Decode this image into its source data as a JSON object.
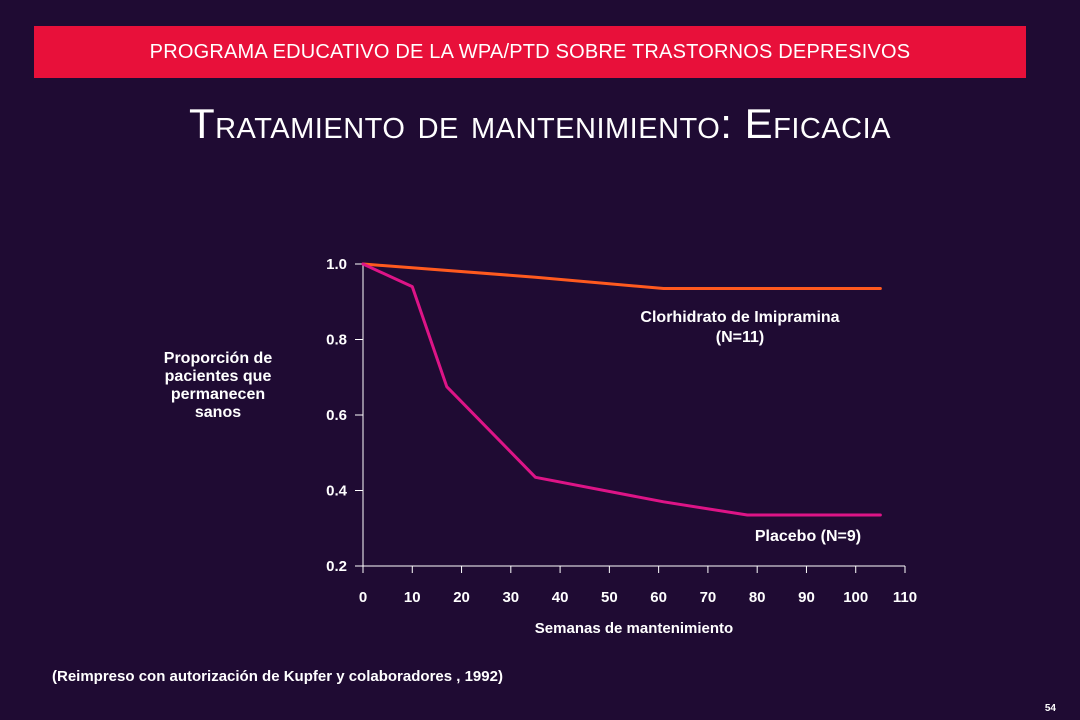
{
  "banner": "PROGRAMA EDUCATIVO DE LA WPA/PTD SOBRE TRASTORNOS DEPRESIVOS",
  "title": "Tratamiento de mantenimiento: Eficacia",
  "citation": "(Reimpreso con autorización de Kupfer y colaboradores , 1992)",
  "page_number": "54",
  "colors": {
    "background": "#1f0b33",
    "banner": "#e8103a",
    "imipramine": "#ff5a1f",
    "placebo": "#dd1487",
    "axis": "#ffffff"
  },
  "chart_data": {
    "type": "line",
    "ylabel_lines": [
      "Proporción de",
      "pacientes que",
      "permanecen",
      "sanos"
    ],
    "xlabel": "Semanas de mantenimiento",
    "xlim": [
      0,
      110
    ],
    "ylim": [
      0.2,
      1.0
    ],
    "x_ticks": [
      "0",
      "10",
      "20",
      "30",
      "40",
      "50",
      "60",
      "70",
      "80",
      "90",
      "100",
      "110"
    ],
    "y_ticks": [
      "0.2",
      "0.4",
      "0.6",
      "0.8",
      "1.0"
    ],
    "grid": false,
    "series": [
      {
        "name": "Clorhidrato de Imipramina",
        "label_lines": [
          "Clorhidrato de Imipramina",
          "(N=11)"
        ],
        "color": "#ff5a1f",
        "points": [
          [
            0,
            1.0
          ],
          [
            35,
            0.965
          ],
          [
            61,
            0.935
          ],
          [
            105,
            0.935
          ]
        ]
      },
      {
        "name": "Placebo",
        "label_lines": [
          "Placebo (N=9)"
        ],
        "color": "#dd1487",
        "points": [
          [
            0,
            1.0
          ],
          [
            10,
            0.94
          ],
          [
            17,
            0.675
          ],
          [
            35,
            0.435
          ],
          [
            61,
            0.37
          ],
          [
            78,
            0.335
          ],
          [
            105,
            0.335
          ]
        ]
      }
    ]
  }
}
